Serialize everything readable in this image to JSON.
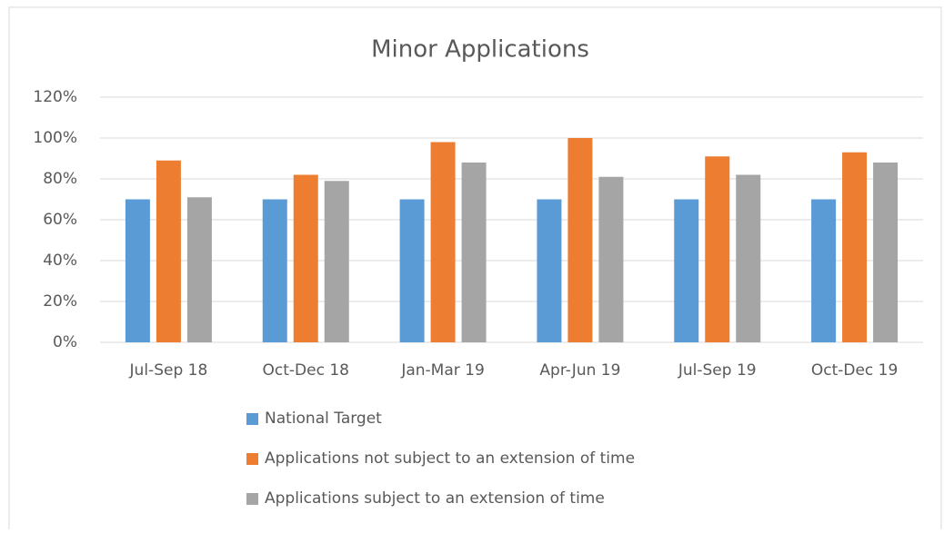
{
  "chart_data": {
    "type": "bar",
    "title": "Minor Applications",
    "categories": [
      "Jul-Sep 18",
      "Oct-Dec 18",
      "Jan-Mar 19",
      "Apr-Jun 19",
      "Jul-Sep 19",
      "Oct-Dec 19"
    ],
    "series": [
      {
        "name": "National Target",
        "color": "#5b9bd5",
        "values": [
          70,
          70,
          70,
          70,
          70,
          70
        ]
      },
      {
        "name": "Applications not subject to an extension of time",
        "color": "#ed7d31",
        "values": [
          89,
          82,
          98,
          100,
          91,
          93
        ]
      },
      {
        "name": "Applications subject to an extension of time",
        "color": "#a5a5a5",
        "values": [
          71,
          79,
          88,
          81,
          82,
          88
        ]
      }
    ],
    "ylim": [
      0,
      120
    ],
    "yticks": [
      {
        "value": 0,
        "label": "0%"
      },
      {
        "value": 20,
        "label": "20%"
      },
      {
        "value": 40,
        "label": "40%"
      },
      {
        "value": 60,
        "label": "60%"
      },
      {
        "value": 80,
        "label": "80%"
      },
      {
        "value": 100,
        "label": "100%"
      },
      {
        "value": 120,
        "label": "120%"
      }
    ],
    "grid": true,
    "legend": "bottom"
  }
}
